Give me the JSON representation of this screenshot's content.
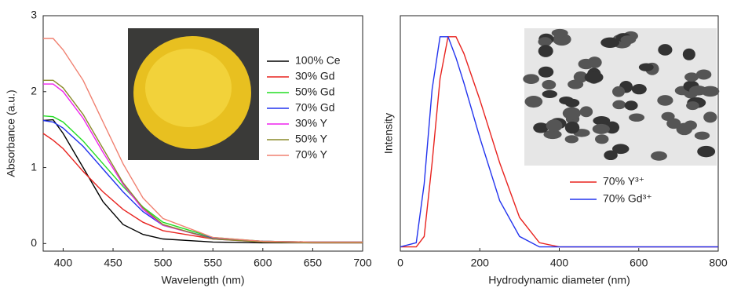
{
  "chart_data": [
    {
      "type": "line",
      "xlabel": "Wavelength (nm)",
      "ylabel": "Absorbance (a.u.)",
      "x": [
        380,
        390,
        400,
        420,
        440,
        460,
        480,
        500,
        550,
        600,
        650,
        700
      ],
      "xlim": [
        380,
        700
      ],
      "xticks": [
        400,
        450,
        500,
        550,
        600,
        650,
        700
      ],
      "ylim": [
        -0.1,
        3
      ],
      "yticks": [
        0,
        1,
        2,
        3
      ],
      "series": [
        {
          "name": "100% Ce",
          "color": "#000000",
          "values": [
            1.62,
            1.63,
            1.45,
            1.0,
            0.55,
            0.25,
            0.12,
            0.06,
            0.02,
            0.01,
            0.01,
            0.01
          ]
        },
        {
          "name": "30% Gd",
          "color": "#e8231f",
          "values": [
            1.45,
            1.36,
            1.25,
            0.95,
            0.68,
            0.45,
            0.28,
            0.17,
            0.06,
            0.03,
            0.02,
            0.02
          ]
        },
        {
          "name": "50% Gd",
          "color": "#22dd22",
          "values": [
            1.68,
            1.67,
            1.6,
            1.35,
            1.05,
            0.75,
            0.48,
            0.28,
            0.08,
            0.03,
            0.02,
            0.02
          ]
        },
        {
          "name": "70% Gd",
          "color": "#2233ee",
          "values": [
            1.62,
            1.6,
            1.52,
            1.28,
            0.98,
            0.68,
            0.42,
            0.24,
            0.07,
            0.03,
            0.02,
            0.02
          ]
        },
        {
          "name": "30% Y",
          "color": "#ee22ee",
          "values": [
            2.1,
            2.1,
            2.0,
            1.65,
            1.2,
            0.78,
            0.45,
            0.24,
            0.06,
            0.02,
            0.01,
            0.01
          ]
        },
        {
          "name": "50% Y",
          "color": "#8a8a2a",
          "values": [
            2.15,
            2.15,
            2.05,
            1.7,
            1.25,
            0.8,
            0.47,
            0.25,
            0.06,
            0.02,
            0.01,
            0.01
          ]
        },
        {
          "name": "70% Y",
          "color": "#f08070",
          "values": [
            2.7,
            2.7,
            2.55,
            2.15,
            1.6,
            1.05,
            0.6,
            0.33,
            0.08,
            0.03,
            0.02,
            0.02
          ]
        }
      ]
    },
    {
      "type": "line",
      "xlabel": "Hydrodynamic diameter (nm)",
      "ylabel": "Intensity",
      "x": [
        0,
        40,
        60,
        80,
        100,
        120,
        140,
        160,
        200,
        250,
        300,
        350,
        400,
        800
      ],
      "xlim": [
        0,
        800
      ],
      "xticks": [
        0,
        200,
        400,
        600,
        800
      ],
      "ylim": [
        -0.02,
        1.1
      ],
      "series": [
        {
          "name": "70% Y³⁺",
          "color": "#e8231f",
          "values": [
            0,
            0,
            0.05,
            0.4,
            0.8,
            1.0,
            1.0,
            0.92,
            0.7,
            0.4,
            0.14,
            0.02,
            0,
            0
          ]
        },
        {
          "name": "70% Gd³⁺",
          "color": "#2233ee",
          "values": [
            0,
            0.02,
            0.3,
            0.75,
            1.0,
            1.0,
            0.9,
            0.78,
            0.52,
            0.22,
            0.05,
            0,
            0,
            0
          ]
        }
      ]
    }
  ]
}
